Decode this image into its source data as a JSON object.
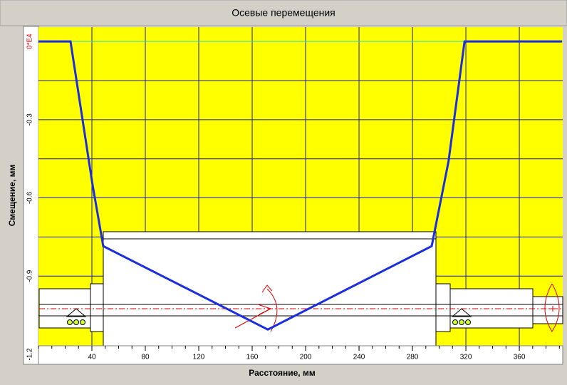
{
  "chart_data": {
    "type": "line",
    "title": "Осевые перемещения",
    "xlabel": "Расстояние, мм",
    "ylabel": "Смещение, мм",
    "x": [
      0,
      24,
      40.5,
      48.5,
      171.7,
      294.4,
      307,
      319,
      392
    ],
    "series": [
      {
        "color": "#1a2ee0",
        "values": [
          0,
          0,
          -0.55,
          -0.785,
          -1.105,
          -0.785,
          -0.46,
          0,
          0
        ]
      }
    ],
    "xlim": [
      0,
      392.5
    ],
    "ylim": [
      -1.2,
      0.055
    ],
    "xticks": [
      40,
      80,
      120,
      160,
      200,
      240,
      280,
      320,
      360
    ],
    "yticks": [
      {
        "value": 0,
        "label": "0*E4"
      },
      -0.3,
      -0.6,
      -0.9,
      -1.2
    ],
    "minor_yticks": [
      -0.15,
      -0.45,
      -0.75,
      -1.05
    ],
    "grid": true,
    "grid_color": "#1c1ca8",
    "zero_line_color": "#2fe0d0",
    "background": "#ffff00"
  }
}
